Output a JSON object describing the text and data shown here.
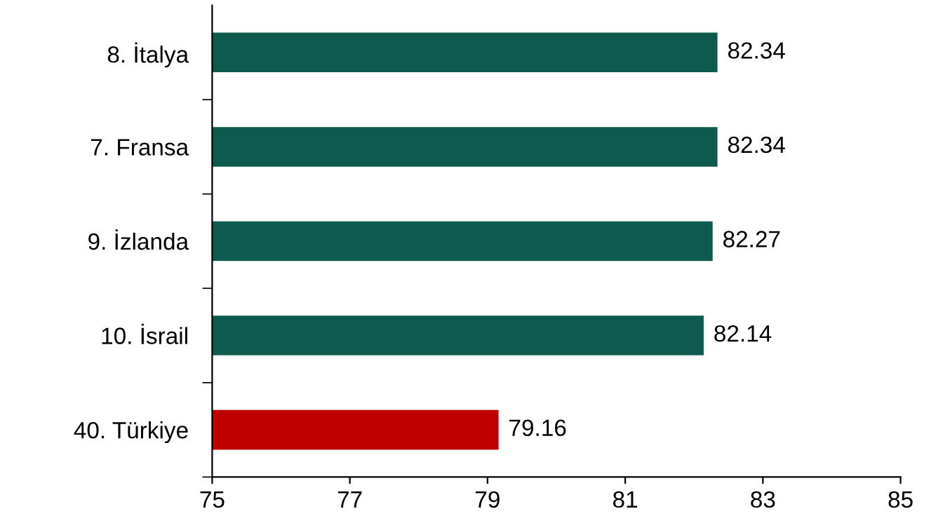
{
  "chart_data": {
    "type": "bar",
    "orientation": "horizontal",
    "categories": [
      "8. İtalya",
      "7. Fransa",
      "9. İzlanda",
      "10. İsrail",
      "40. Türkiye"
    ],
    "values": [
      82.34,
      82.34,
      82.27,
      82.14,
      79.16
    ],
    "colors": [
      "#0e5a4e",
      "#0e5a4e",
      "#0e5a4e",
      "#0e5a4e",
      "#c00000"
    ],
    "xlim": [
      75,
      85
    ],
    "xticks": [
      75,
      77,
      79,
      81,
      83,
      85
    ],
    "data_labels": true,
    "grid": false,
    "legend": false
  }
}
